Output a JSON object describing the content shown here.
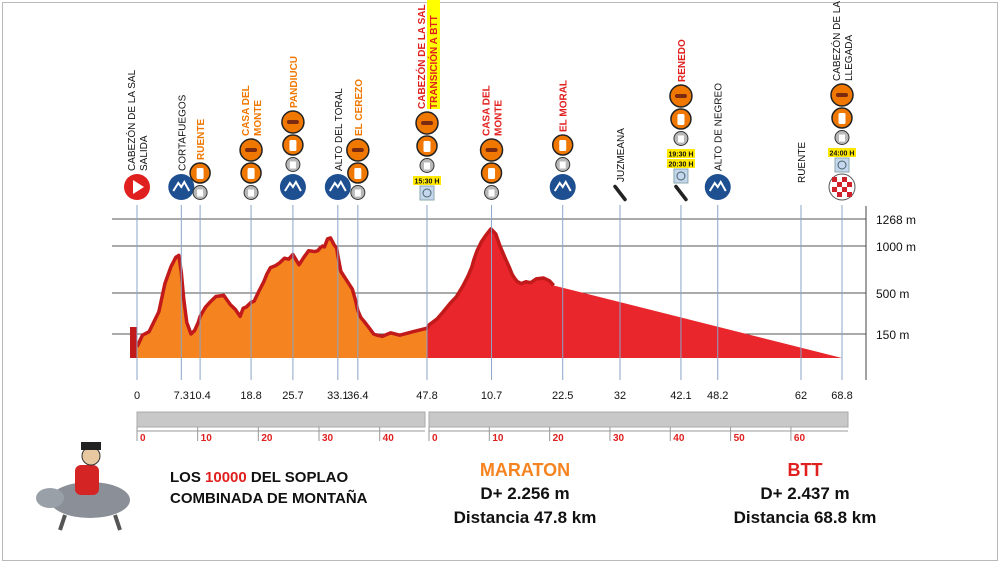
{
  "chart_data": {
    "type": "area",
    "title": "",
    "y_reference_lines": [
      "1268 m",
      "1000 m",
      "500 m",
      "150 m"
    ],
    "y_reference_values": [
      1268,
      1000,
      500,
      150
    ],
    "total_km": 68.8,
    "transition_km": 47.8,
    "series": [
      {
        "name": "MARATON",
        "color": "#f58420",
        "x_range": [
          0,
          47.8
        ]
      },
      {
        "name": "BTT",
        "color": "#e8262b",
        "x_range": [
          47.8,
          68.8
        ]
      }
    ],
    "profile": {
      "x": [
        0,
        0.9,
        2,
        3.6,
        4.6,
        5.6,
        6.4,
        6.9,
        7.3,
        7.7,
        8.2,
        8.9,
        9.5,
        10.1,
        10.4,
        11.3,
        12,
        13,
        14.3,
        15.4,
        16.2,
        17,
        17.5,
        18,
        18.8,
        19.3,
        20.1,
        20.9,
        21.4,
        22,
        22.8,
        23.5,
        24.3,
        25,
        25.7,
        26.7,
        27.5,
        28.3,
        29.3,
        29.8,
        30.2,
        30.6,
        30.9,
        31.4,
        31.9,
        32.5,
        32.9,
        33.1,
        33.6,
        34.3,
        34.9,
        35.5,
        36,
        36.4,
        36.9,
        37.4,
        38.3,
        39,
        39.6,
        40.4,
        41.8,
        43.3,
        45.5,
        47.8,
        48.2,
        49.5,
        50.5,
        51.6,
        52.7,
        53.8,
        54.6,
        55.2,
        55.6,
        56.1,
        56.8,
        57.6,
        58.4,
        59.2,
        59.9,
        60.7,
        61.4,
        61.9,
        62.4,
        62.8,
        63.4,
        64.2,
        65,
        65.9,
        67.1,
        68.1,
        68.8
      ],
      "y": [
        40,
        140,
        170,
        340,
        600,
        780,
        880,
        900,
        720,
        450,
        250,
        150,
        180,
        250,
        300,
        380,
        420,
        470,
        480,
        400,
        360,
        300,
        370,
        380,
        420,
        430,
        520,
        620,
        700,
        770,
        790,
        820,
        870,
        860,
        910,
        800,
        880,
        950,
        940,
        950,
        980,
        1000,
        990,
        1070,
        1080,
        1010,
        980,
        900,
        730,
        660,
        600,
        540,
        440,
        350,
        290,
        260,
        200,
        150,
        140,
        130,
        160,
        140,
        170,
        200,
        230,
        280,
        340,
        410,
        470,
        580,
        680,
        770,
        860,
        950,
        1040,
        1110,
        1170,
        1120,
        1000,
        880,
        780,
        700,
        650,
        620,
        600,
        620,
        610,
        650,
        660,
        630,
        580
      ],
      "units": "meters"
    },
    "x_ticks": [
      {
        "label": "0",
        "km": 0
      },
      {
        "label": "7.3",
        "km": 7.3
      },
      {
        "label": "10.4",
        "km": 10.4
      },
      {
        "label": "18.8",
        "km": 18.8
      },
      {
        "label": "25.7",
        "km": 25.7
      },
      {
        "label": "33.1",
        "km": 33.1
      },
      {
        "label": "36.4",
        "km": 36.4
      },
      {
        "label": "47.8",
        "km": 47.8
      },
      {
        "label": "10.7",
        "km": 58.5
      },
      {
        "label": "22.5",
        "km": 70.3
      },
      {
        "label": "32",
        "km": 79.8
      },
      {
        "label": "42.1",
        "km": 89.9
      },
      {
        "label": "48.2",
        "km": 96
      },
      {
        "label": "62",
        "km": 109.8
      },
      {
        "label": "68.8",
        "km": 116.6
      }
    ],
    "scale_marks_maraton": [
      "0",
      "10",
      "20",
      "30",
      "40"
    ],
    "scale_marks_btt": [
      "0",
      "10",
      "20",
      "30",
      "40",
      "50",
      "60"
    ],
    "waypoints": [
      {
        "name": "CABEZÓN DE LA SAL SALIDA",
        "line1": "CABEZÓN DE LA SAL",
        "line2": "SALIDA",
        "color": "#111111",
        "km": 0,
        "icons": [
          "start-icon"
        ]
      },
      {
        "name": "CORTAFUEGOS",
        "line1": "CORTAFUEGOS",
        "color": "#111111",
        "km": 7.3,
        "icons": [
          "mountain-icon"
        ]
      },
      {
        "name": "RUENTE",
        "line1": "RUENTE",
        "color": "#f07800",
        "km": 10.4,
        "icons": [
          "bottle-icon",
          "trash-icon"
        ]
      },
      {
        "name": "CASA DEL MONTE",
        "line1": "CASA DEL",
        "line2": "MONTE",
        "color": "#f07800",
        "km": 18.8,
        "icons": [
          "food-icon",
          "bottle-icon",
          "trash-icon"
        ]
      },
      {
        "name": "PANDIUCU",
        "line1": "PANDIUCU",
        "color": "#f07800",
        "km": 25.7,
        "icons": [
          "food-icon",
          "bottle-icon",
          "trash-icon",
          "mountain-icon"
        ]
      },
      {
        "name": "ALTO DEL TORAL",
        "line1": "ALTO DEL TORAL",
        "color": "#111111",
        "km": 33.1,
        "icons": [
          "mountain-icon"
        ]
      },
      {
        "name": "EL CEREZO",
        "line1": "EL CEREZO",
        "color": "#f07800",
        "km": 36.4,
        "icons": [
          "food-icon",
          "bottle-icon",
          "trash-icon"
        ]
      },
      {
        "name": "CABEZÓN DE LA SAL TRANSICIÓN A BTT",
        "line1": "CABEZÓN DE LA SAL",
        "line2": "TRANSICIÓN A BTT",
        "color": "#e0201f",
        "km": 47.8,
        "icons": [
          "food-icon",
          "bottle-icon",
          "trash-icon",
          "clock-icon"
        ],
        "time": "15:30 H"
      },
      {
        "name": "CASA DEL MONTE",
        "line1": "CASA DEL",
        "line2": "MONTE",
        "color": "#e0201f",
        "km": 58.5,
        "icons": [
          "food-icon",
          "bottle-icon",
          "trash-icon"
        ]
      },
      {
        "name": "EL MORAL",
        "line1": "EL MORAL",
        "color": "#e0201f",
        "km": 70.3,
        "icons": [
          "bottle-icon",
          "trash-icon",
          "mountain-icon"
        ]
      },
      {
        "name": "JUZMEANA",
        "line1": "JUZMEANA",
        "color": "#111111",
        "km": 79.8,
        "icons": [
          "wrench-icon"
        ]
      },
      {
        "name": "RENEDO",
        "line1": "RENEDO",
        "color": "#e0201f",
        "km": 89.9,
        "icons": [
          "food-icon",
          "bottle-icon",
          "trash-icon",
          "clock-icon",
          "wrench-icon"
        ],
        "time": "19:30 H",
        "time2": "20:30 H"
      },
      {
        "name": "ALTO DE NEGREO",
        "line1": "ALTO DE NEGREO",
        "color": "#111111",
        "km": 96,
        "icons": [
          "mountain-icon"
        ]
      },
      {
        "name": "RUENTE",
        "line1": "RUENTE",
        "color": "#111111",
        "km": 109.8,
        "icons": []
      },
      {
        "name": "CABEZÓN DE LA SAL LLEGADA",
        "line1": "CABEZÓN DE LA SAL",
        "line2": "LLEGADA",
        "color": "#111111",
        "km": 116.6,
        "icons": [
          "food-icon",
          "bottle-icon",
          "trash-icon",
          "clock-icon",
          "finish-icon"
        ],
        "time": "24:00 H"
      }
    ]
  },
  "footer": {
    "event_prefix": "LOS ",
    "event_number": "10000",
    "event_suffix": " DEL SOPLAO",
    "event_line2": "COMBINADA DE MONTAÑA",
    "maraton_title": "MARATON",
    "maraton_gain": "D+ 2.256 m",
    "maraton_distance": "Distancia 47.8 km",
    "btt_title": "BTT",
    "btt_gain": "D+ 2.437 m",
    "btt_distance": "Distancia 68.8 km"
  },
  "logo": {
    "icon": "bull-rider-icon"
  },
  "colors": {
    "maraton": "#f58420",
    "btt": "#e8262b",
    "ridge": "#c21a1a",
    "gridline": "#555555"
  }
}
